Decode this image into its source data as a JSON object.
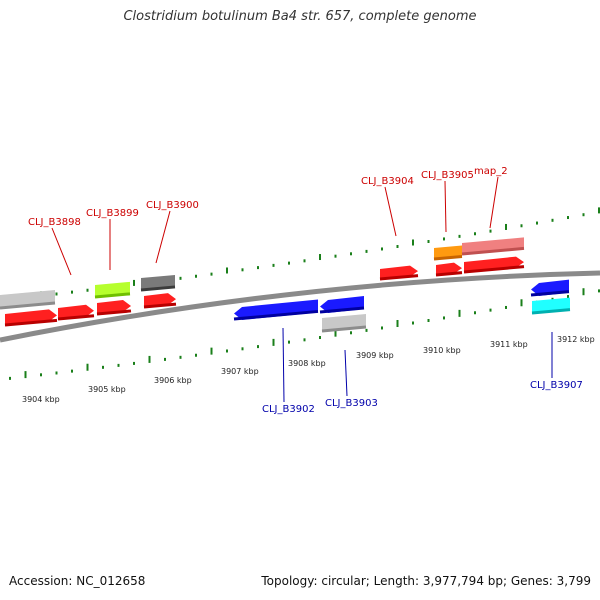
{
  "title": "Clostridium botulinum Ba4 str. 657, complete genome",
  "footer": {
    "accession": "Accession: NC_012658",
    "topology": "Topology: circular; Length: 3,977,794 bp; Genes: 3,799"
  },
  "colors": {
    "backbone": "#808080",
    "plus_label": "#cc0000",
    "minus_label": "#0000aa",
    "tick": "#1a7f1a",
    "ruler_text": "#222222"
  },
  "ruler_labels": [
    "3904 kbp",
    "3905 kbp",
    "3906 kbp",
    "3907 kbp",
    "3908 kbp",
    "3909 kbp",
    "3910 kbp",
    "3911 kbp",
    "3912 kbp"
  ],
  "gene_labels_plus": [
    "CLJ_B3898",
    "CLJ_B3899",
    "CLJ_B3900",
    "CLJ_B3904",
    "CLJ_B3905",
    "map_2"
  ],
  "gene_labels_minus": [
    "CLJ_B3902",
    "CLJ_B3903",
    "CLJ_B3907"
  ],
  "features": [
    {
      "name": "feature-red-1",
      "color": "red"
    },
    {
      "name": "feature-red-2",
      "color": "red"
    },
    {
      "name": "feature-red-3",
      "color": "red"
    },
    {
      "name": "feature-red-4",
      "color": "red"
    },
    {
      "name": "feature-red-5",
      "color": "red"
    },
    {
      "name": "feature-red-6",
      "color": "red"
    },
    {
      "name": "feature-red-7",
      "color": "red"
    },
    {
      "name": "feature-grey-1",
      "color": "grey"
    },
    {
      "name": "feature-lime",
      "color": "lime"
    },
    {
      "name": "feature-darkgrey",
      "color": "darkgrey"
    },
    {
      "name": "feature-orange",
      "color": "orange"
    },
    {
      "name": "feature-pink",
      "color": "pink"
    },
    {
      "name": "feature-blue-1",
      "color": "blue"
    },
    {
      "name": "feature-blue-2",
      "color": "blue"
    },
    {
      "name": "feature-grey-2",
      "color": "grey"
    },
    {
      "name": "feature-blue-3",
      "color": "blue"
    },
    {
      "name": "feature-cyan",
      "color": "cyan"
    }
  ]
}
